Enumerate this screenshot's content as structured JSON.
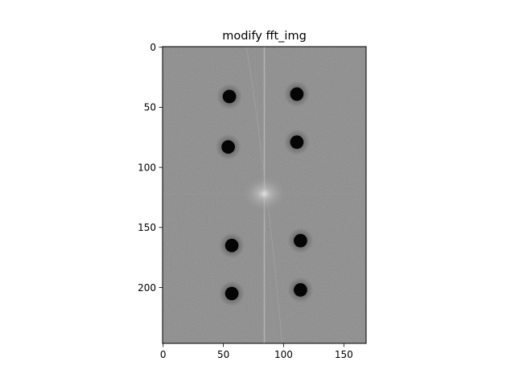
{
  "chart_data": {
    "type": "heatmap",
    "title": "modify fft_img",
    "xlabel": "",
    "ylabel": "",
    "colormap": "gray",
    "image_shape": [
      247,
      169
    ],
    "xlim": [
      -0.5,
      168.5
    ],
    "ylim": [
      246.5,
      -0.5
    ],
    "x_ticks": [
      0,
      50,
      100,
      150
    ],
    "y_ticks": [
      0,
      50,
      100,
      150,
      200
    ],
    "grid": false,
    "background_value": 0.5,
    "center_bright_spot": {
      "x": 84,
      "y": 122,
      "value": 0.88
    },
    "vertical_streak_x": 84,
    "masked_spots": [
      {
        "x": 55,
        "y": 41,
        "radius": 5.6,
        "value": 0.0
      },
      {
        "x": 111,
        "y": 39,
        "radius": 5.6,
        "value": 0.0
      },
      {
        "x": 54,
        "y": 83,
        "radius": 5.6,
        "value": 0.0
      },
      {
        "x": 111,
        "y": 79,
        "radius": 5.6,
        "value": 0.0
      },
      {
        "x": 57,
        "y": 165,
        "radius": 5.6,
        "value": 0.0
      },
      {
        "x": 114,
        "y": 161,
        "radius": 5.6,
        "value": 0.0
      },
      {
        "x": 57,
        "y": 205,
        "radius": 5.6,
        "value": 0.0
      },
      {
        "x": 114,
        "y": 202,
        "radius": 5.6,
        "value": 0.0
      }
    ]
  }
}
